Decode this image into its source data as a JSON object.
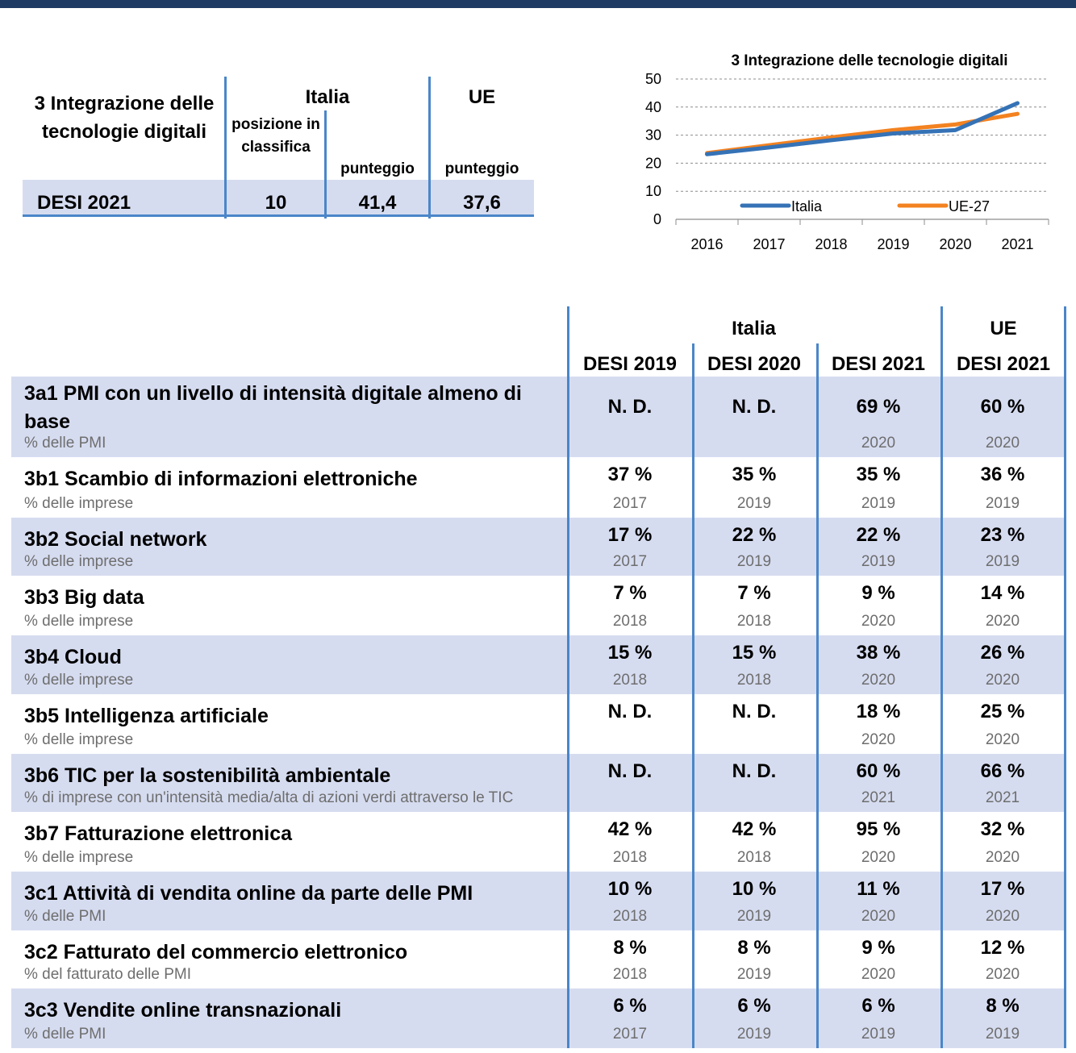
{
  "summary": {
    "title": "3 Integrazione delle tecnologie digitali",
    "col_italia": "Italia",
    "col_ue": "UE",
    "sub_posizione": "posizione in classifica",
    "sub_punteggio_it": "punteggio",
    "sub_punteggio_ue": "punteggio",
    "row_label": "DESI 2021",
    "posizione": "10",
    "punteggio_italia": "41,4",
    "punteggio_ue": "37,6"
  },
  "chart_data": {
    "type": "line",
    "title": "3 Integrazione delle tecnologie digitali",
    "categories": [
      "2016",
      "2017",
      "2018",
      "2019",
      "2020",
      "2021"
    ],
    "y_ticks": [
      "0",
      "10",
      "20",
      "30",
      "40",
      "50"
    ],
    "ylim": [
      0,
      50
    ],
    "grid": true,
    "legend_position": "bottom-inside",
    "series": [
      {
        "name": "Italia",
        "values": [
          23.2,
          25.6,
          28.2,
          30.6,
          31.8,
          41.4
        ],
        "color": "#3572b6"
      },
      {
        "name": "UE-27",
        "values": [
          23.6,
          26.4,
          29.2,
          31.8,
          33.8,
          37.6
        ],
        "color": "#f38220"
      }
    ]
  },
  "table": {
    "group_italia": "Italia",
    "group_ue": "UE",
    "columns": [
      "DESI 2019",
      "DESI 2020",
      "DESI 2021",
      "DESI 2021"
    ],
    "rows": [
      {
        "label": "3a1 PMI con un livello di intensità digitale almeno di base",
        "sub": "% delle PMI",
        "values": [
          "N. D.",
          "N. D.",
          "69 %",
          "60 %"
        ],
        "years": [
          "",
          "",
          "2020",
          "2020"
        ]
      },
      {
        "label": "3b1 Scambio di informazioni elettroniche",
        "sub": "% delle imprese",
        "values": [
          "37 %",
          "35 %",
          "35 %",
          "36 %"
        ],
        "years": [
          "2017",
          "2019",
          "2019",
          "2019"
        ]
      },
      {
        "label": "3b2 Social network",
        "sub": "% delle imprese",
        "values": [
          "17 %",
          "22 %",
          "22 %",
          "23 %"
        ],
        "years": [
          "2017",
          "2019",
          "2019",
          "2019"
        ]
      },
      {
        "label": "3b3 Big data",
        "sub": "% delle imprese",
        "values": [
          "7 %",
          "7 %",
          "9 %",
          "14 %"
        ],
        "years": [
          "2018",
          "2018",
          "2020",
          "2020"
        ]
      },
      {
        "label": "3b4 Cloud",
        "sub": "% delle imprese",
        "values": [
          "15 %",
          "15 %",
          "38 %",
          "26 %"
        ],
        "years": [
          "2018",
          "2018",
          "2020",
          "2020"
        ]
      },
      {
        "label": "3b5 Intelligenza artificiale",
        "sub": "% delle imprese",
        "values": [
          "N. D.",
          "N. D.",
          "18 %",
          "25 %"
        ],
        "years": [
          "",
          "",
          "2020",
          "2020"
        ]
      },
      {
        "label": "3b6 TIC per la sostenibilità ambientale",
        "sub": "% di imprese con un'intensità media/alta di azioni verdi attraverso le TIC",
        "values": [
          "N. D.",
          "N. D.",
          "60 %",
          "66 %"
        ],
        "years": [
          "",
          "",
          "2021",
          "2021"
        ]
      },
      {
        "label": "3b7 Fatturazione elettronica",
        "sub": "% delle imprese",
        "values": [
          "42 %",
          "42 %",
          "95 %",
          "32 %"
        ],
        "years": [
          "2018",
          "2018",
          "2020",
          "2020"
        ]
      },
      {
        "label": "3c1 Attività di vendita online da parte delle PMI",
        "sub": "% delle PMI",
        "values": [
          "10 %",
          "10 %",
          "11 %",
          "17 %"
        ],
        "years": [
          "2018",
          "2019",
          "2020",
          "2020"
        ]
      },
      {
        "label": "3c2 Fatturato del commercio elettronico",
        "sub": "% del fatturato delle PMI",
        "values": [
          "8 %",
          "8 %",
          "9 %",
          "12 %"
        ],
        "years": [
          "2018",
          "2019",
          "2020",
          "2020"
        ]
      },
      {
        "label": "3c3 Vendite online transnazionali",
        "sub": "% delle PMI",
        "values": [
          "6 %",
          "6 %",
          "6 %",
          "8 %"
        ],
        "years": [
          "2017",
          "2019",
          "2019",
          "2019"
        ]
      }
    ]
  }
}
